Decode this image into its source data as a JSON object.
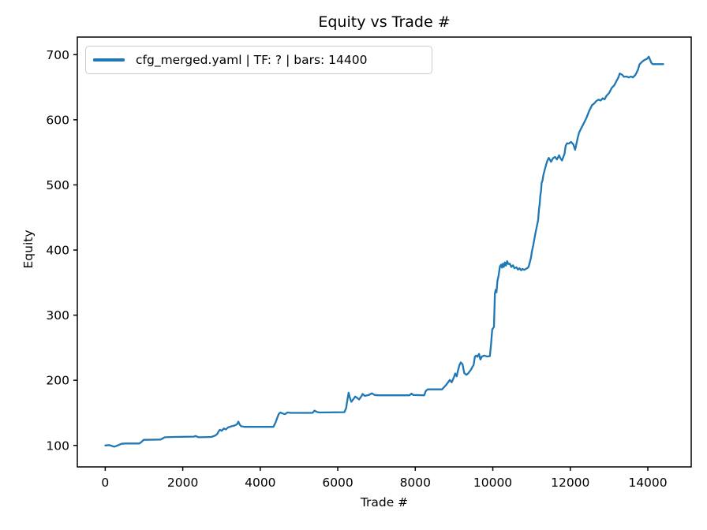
{
  "chart_data": {
    "type": "line",
    "title": "Equity vs Trade #",
    "xlabel": "Trade #",
    "ylabel": "Equity",
    "xlim": [
      -720,
      15120
    ],
    "ylim": [
      67,
      727
    ],
    "x_ticks": [
      0,
      2000,
      4000,
      6000,
      8000,
      10000,
      12000,
      14000
    ],
    "y_ticks": [
      100,
      200,
      300,
      400,
      500,
      600,
      700
    ],
    "grid": false,
    "legend_position": "upper left",
    "axis_color": "#000000",
    "series": [
      {
        "name": "cfg_merged.yaml | TF: ? | bars: 14400",
        "color": "#1f77b4",
        "points": [
          [
            1,
            100
          ],
          [
            100,
            100.5
          ],
          [
            230,
            98
          ],
          [
            320,
            100
          ],
          [
            420,
            102.5
          ],
          [
            520,
            103
          ],
          [
            880,
            103
          ],
          [
            940,
            105.5
          ],
          [
            990,
            108.5
          ],
          [
            1430,
            109
          ],
          [
            1490,
            111
          ],
          [
            1540,
            112.5
          ],
          [
            1800,
            113
          ],
          [
            2290,
            113.5
          ],
          [
            2330,
            114.5
          ],
          [
            2410,
            112.5
          ],
          [
            2740,
            113
          ],
          [
            2830,
            115
          ],
          [
            2890,
            117.5
          ],
          [
            2925,
            121.5
          ],
          [
            2960,
            124
          ],
          [
            3005,
            122.5
          ],
          [
            3060,
            126
          ],
          [
            3115,
            124.5
          ],
          [
            3165,
            127.5
          ],
          [
            3265,
            129.5
          ],
          [
            3335,
            130.5
          ],
          [
            3400,
            132.5
          ],
          [
            3435,
            136.5
          ],
          [
            3470,
            132
          ],
          [
            3505,
            129.5
          ],
          [
            3595,
            128.5
          ],
          [
            4340,
            128.5
          ],
          [
            4400,
            136
          ],
          [
            4440,
            142.5
          ],
          [
            4480,
            148.5
          ],
          [
            4520,
            150.5
          ],
          [
            4580,
            149
          ],
          [
            4640,
            148
          ],
          [
            4700,
            150.5
          ],
          [
            4800,
            150
          ],
          [
            5350,
            150
          ],
          [
            5400,
            153.5
          ],
          [
            5460,
            151.5
          ],
          [
            5520,
            150.5
          ],
          [
            6170,
            151
          ],
          [
            6215,
            157
          ],
          [
            6250,
            170
          ],
          [
            6280,
            181
          ],
          [
            6315,
            173
          ],
          [
            6350,
            167
          ],
          [
            6420,
            172.5
          ],
          [
            6450,
            175
          ],
          [
            6500,
            173
          ],
          [
            6550,
            170.5
          ],
          [
            6620,
            176.5
          ],
          [
            6640,
            179
          ],
          [
            6700,
            176
          ],
          [
            6800,
            177.5
          ],
          [
            6880,
            180
          ],
          [
            6950,
            177.5
          ],
          [
            7050,
            177
          ],
          [
            7850,
            177
          ],
          [
            7900,
            179.5
          ],
          [
            7950,
            177.5
          ],
          [
            8230,
            177
          ],
          [
            8270,
            183.5
          ],
          [
            8320,
            186
          ],
          [
            8690,
            186
          ],
          [
            8790,
            192.5
          ],
          [
            8890,
            200.5
          ],
          [
            8940,
            197
          ],
          [
            9000,
            205
          ],
          [
            9030,
            210.5
          ],
          [
            9070,
            206
          ],
          [
            9100,
            214.5
          ],
          [
            9140,
            223.5
          ],
          [
            9175,
            227.5
          ],
          [
            9220,
            224.5
          ],
          [
            9265,
            211
          ],
          [
            9320,
            208.5
          ],
          [
            9370,
            211
          ],
          [
            9440,
            216.5
          ],
          [
            9475,
            220.5
          ],
          [
            9505,
            223.5
          ],
          [
            9540,
            236.5
          ],
          [
            9575,
            238
          ],
          [
            9605,
            236
          ],
          [
            9645,
            240.5
          ],
          [
            9680,
            232
          ],
          [
            9720,
            236.5
          ],
          [
            9780,
            238
          ],
          [
            9850,
            236.5
          ],
          [
            9925,
            237
          ],
          [
            9955,
            255
          ],
          [
            9985,
            278
          ],
          [
            10030,
            282
          ],
          [
            10055,
            333
          ],
          [
            10075,
            339
          ],
          [
            10095,
            335
          ],
          [
            10120,
            352.5
          ],
          [
            10150,
            361
          ],
          [
            10185,
            375
          ],
          [
            10215,
            377.5
          ],
          [
            10235,
            373
          ],
          [
            10260,
            379
          ],
          [
            10285,
            374
          ],
          [
            10310,
            381
          ],
          [
            10340,
            376
          ],
          [
            10370,
            383
          ],
          [
            10400,
            378.5
          ],
          [
            10440,
            379
          ],
          [
            10480,
            374
          ],
          [
            10520,
            376.5
          ],
          [
            10560,
            372
          ],
          [
            10610,
            373.5
          ],
          [
            10650,
            370
          ],
          [
            10690,
            372
          ],
          [
            10730,
            369
          ],
          [
            10770,
            371
          ],
          [
            10810,
            369.5
          ],
          [
            10850,
            371
          ],
          [
            10890,
            372
          ],
          [
            10925,
            374.5
          ],
          [
            10955,
            381
          ],
          [
            10985,
            388
          ],
          [
            11010,
            398
          ],
          [
            11040,
            406
          ],
          [
            11070,
            416
          ],
          [
            11100,
            426
          ],
          [
            11135,
            436
          ],
          [
            11170,
            446
          ],
          [
            11190,
            462
          ],
          [
            11210,
            471
          ],
          [
            11225,
            483
          ],
          [
            11245,
            491
          ],
          [
            11260,
            503
          ],
          [
            11285,
            507
          ],
          [
            11305,
            515
          ],
          [
            11340,
            523
          ],
          [
            11375,
            531
          ],
          [
            11410,
            537.5
          ],
          [
            11445,
            541.5
          ],
          [
            11505,
            535.5
          ],
          [
            11555,
            541
          ],
          [
            11605,
            543
          ],
          [
            11655,
            539
          ],
          [
            11710,
            545.5
          ],
          [
            11745,
            541
          ],
          [
            11785,
            537.5
          ],
          [
            11850,
            547.5
          ],
          [
            11880,
            560
          ],
          [
            11915,
            564
          ],
          [
            11965,
            563.5
          ],
          [
            12020,
            566
          ],
          [
            12080,
            562
          ],
          [
            12100,
            558
          ],
          [
            12125,
            554
          ],
          [
            12190,
            572
          ],
          [
            12225,
            580
          ],
          [
            12290,
            588
          ],
          [
            12360,
            596
          ],
          [
            12425,
            604
          ],
          [
            12490,
            614
          ],
          [
            12560,
            622.5
          ],
          [
            12625,
            625.5
          ],
          [
            12665,
            628.5
          ],
          [
            12730,
            631
          ],
          [
            12780,
            629.5
          ],
          [
            12835,
            633
          ],
          [
            12885,
            631.5
          ],
          [
            12935,
            637
          ],
          [
            13000,
            641
          ],
          [
            13035,
            645
          ],
          [
            13070,
            649
          ],
          [
            13135,
            653
          ],
          [
            13170,
            657
          ],
          [
            13205,
            661
          ],
          [
            13240,
            665
          ],
          [
            13275,
            671
          ],
          [
            13340,
            669
          ],
          [
            13385,
            666
          ],
          [
            13450,
            666.5
          ],
          [
            13510,
            665
          ],
          [
            13565,
            666.5
          ],
          [
            13615,
            665
          ],
          [
            13680,
            669
          ],
          [
            13715,
            673
          ],
          [
            13750,
            677.5
          ],
          [
            13785,
            685
          ],
          [
            13850,
            689
          ],
          [
            13905,
            691.5
          ],
          [
            13985,
            694
          ],
          [
            14025,
            697
          ],
          [
            14060,
            692
          ],
          [
            14090,
            687.5
          ],
          [
            14125,
            685.5
          ],
          [
            14200,
            685.5
          ],
          [
            14400,
            685.5
          ]
        ]
      }
    ]
  }
}
